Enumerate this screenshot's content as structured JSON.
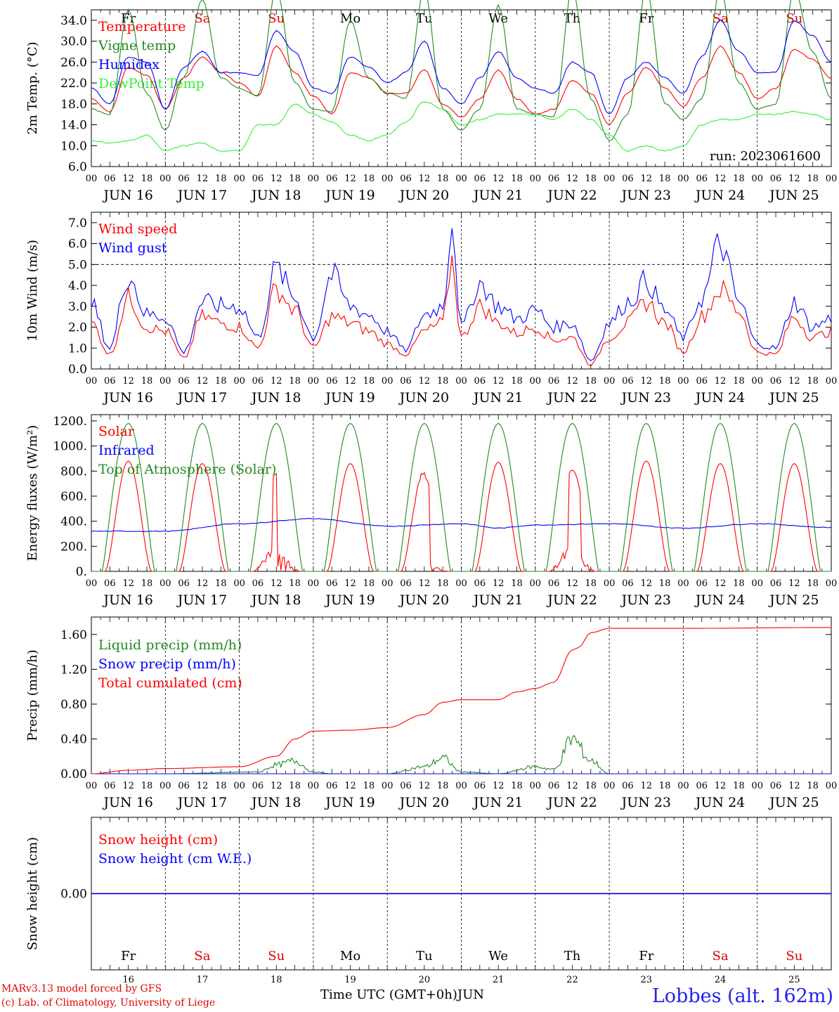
{
  "footer": {
    "credit_1": "MARv3.13 model forced by GFS",
    "credit_2": "(c) Lab. of Climatology, University of Liege",
    "xlabel": "Time UTC (GMT+0h)",
    "month": "JUN",
    "station": "Lobbes (alt. 162m)"
  },
  "days": {
    "weekdays": [
      "Fr",
      "Sa",
      "Su",
      "Mo",
      "Tu",
      "We",
      "Th",
      "Fr",
      "Sa",
      "Su"
    ],
    "weekend_color": "#e00000",
    "weekday_color": "#000000",
    "weekend_flags": [
      false,
      true,
      true,
      false,
      false,
      false,
      false,
      false,
      true,
      true
    ],
    "date_labels": [
      "JUN 16",
      "JUN 17",
      "JUN 18",
      "JUN 19",
      "JUN 20",
      "JUN 21",
      "JUN 22",
      "JUN 23",
      "JUN 24",
      "JUN 25"
    ],
    "day_numbers": [
      "16",
      "17",
      "18",
      "19",
      "20",
      "21",
      "22",
      "23",
      "24",
      "25"
    ],
    "hour_labels": [
      "00",
      "06",
      "12",
      "18"
    ],
    "final_hour": "00"
  },
  "chart_data": [
    {
      "type": "line",
      "ylabel": "2m Temp. (°C)",
      "ylim": [
        6,
        36
      ],
      "yticks": [
        "6.0",
        "10.0",
        "14.0",
        "18.0",
        "22.0",
        "26.0",
        "30.0",
        "34.0"
      ],
      "annotation": "run: 2023061600",
      "x_unit": "hours since JUN 16 00 UTC",
      "series": [
        {
          "name": "Temperature",
          "color": "#ff0000",
          "x": [
            0,
            6,
            12,
            18,
            24,
            30,
            36,
            42,
            48,
            54,
            60,
            66,
            72,
            78,
            84,
            90,
            96,
            102,
            108,
            114,
            120,
            126,
            132,
            138,
            144,
            150,
            156,
            162,
            168,
            174,
            180,
            186,
            192,
            198,
            204,
            210,
            216,
            222,
            228,
            234,
            240
          ],
          "values": [
            19,
            16.5,
            25,
            23.5,
            17,
            23,
            27,
            24,
            22,
            19.5,
            29,
            24,
            19.5,
            16,
            24,
            23,
            20,
            20,
            24.5,
            18,
            15.5,
            19,
            24.5,
            19,
            16,
            17,
            22.5,
            20,
            14,
            20,
            25,
            21,
            17.5,
            23,
            29,
            24,
            19,
            21,
            28.5,
            26.5,
            23
          ]
        },
        {
          "name": "Vigne temp",
          "color": "#228b22",
          "x": [
            0,
            6,
            12,
            18,
            24,
            30,
            36,
            42,
            48,
            54,
            60,
            66,
            72,
            78,
            84,
            90,
            96,
            102,
            108,
            114,
            120,
            126,
            132,
            138,
            144,
            150,
            156,
            162,
            168,
            174,
            180,
            186,
            192,
            198,
            204,
            210,
            216,
            222,
            228,
            234,
            240
          ],
          "values": [
            17,
            16,
            36,
            20,
            13,
            23,
            38,
            23,
            21,
            19.5,
            40,
            22,
            17,
            16.5,
            34,
            23,
            20,
            19,
            40,
            17,
            13,
            17,
            37,
            17,
            16,
            15.5,
            40,
            19,
            11,
            16,
            40,
            18,
            15,
            19,
            40,
            22,
            17,
            18,
            40,
            28,
            19
          ]
        },
        {
          "name": "Humidex",
          "color": "#0000ff",
          "x": [
            0,
            6,
            12,
            18,
            24,
            30,
            36,
            42,
            48,
            54,
            60,
            66,
            72,
            78,
            84,
            90,
            96,
            102,
            108,
            114,
            120,
            126,
            132,
            138,
            144,
            150,
            156,
            162,
            168,
            174,
            180,
            186,
            192,
            198,
            204,
            210,
            216,
            222,
            228,
            234,
            240
          ],
          "values": [
            21,
            18,
            27,
            26,
            17,
            25,
            28,
            24,
            24,
            23.5,
            32,
            28,
            21,
            20,
            27,
            25,
            22,
            24,
            30,
            21,
            18,
            23,
            28,
            23,
            21,
            20,
            26,
            24,
            16,
            23,
            26,
            23,
            20,
            27,
            34,
            28,
            24,
            24,
            34,
            31,
            26
          ]
        },
        {
          "name": "DewPoint Temp",
          "color": "#33ee33",
          "x": [
            0,
            6,
            12,
            18,
            24,
            30,
            36,
            42,
            48,
            54,
            60,
            66,
            72,
            78,
            84,
            90,
            96,
            102,
            108,
            114,
            120,
            126,
            132,
            138,
            144,
            150,
            156,
            162,
            168,
            174,
            180,
            186,
            192,
            198,
            204,
            210,
            216,
            222,
            228,
            234,
            240
          ],
          "values": [
            11,
            10.5,
            11,
            12,
            9,
            10,
            10.5,
            9,
            9,
            14,
            14,
            18,
            16,
            14.5,
            12,
            11,
            12,
            14.5,
            18.5,
            17,
            14,
            15,
            16,
            16,
            16,
            15,
            17,
            15,
            12,
            9,
            10,
            9,
            10,
            14,
            15,
            15,
            16,
            16,
            16.5,
            16,
            15
          ]
        }
      ]
    },
    {
      "type": "line",
      "ylabel": "10m Wind (m/s)",
      "ylim": [
        0,
        7.5
      ],
      "yticks": [
        "0.0",
        "1.0",
        "2.0",
        "3.0",
        "4.0",
        "5.0",
        "6.0",
        "7.0"
      ],
      "reference_line": 5.0,
      "series": [
        {
          "name": "Wind speed",
          "color": "#ff0000",
          "x": [
            0,
            6,
            12,
            18,
            24,
            30,
            36,
            42,
            48,
            54,
            60,
            66,
            72,
            78,
            84,
            90,
            96,
            102,
            108,
            114,
            117,
            120,
            126,
            132,
            138,
            144,
            150,
            156,
            162,
            168,
            174,
            180,
            186,
            192,
            198,
            204,
            210,
            216,
            222,
            228,
            234,
            240
          ],
          "values": [
            2.2,
            0.7,
            3.4,
            2.0,
            1.8,
            0.5,
            2.5,
            2.2,
            2.0,
            1.0,
            3.8,
            2.8,
            1.0,
            2.5,
            2.2,
            1.8,
            1.2,
            0.7,
            1.8,
            2.2,
            5.2,
            1.5,
            3.0,
            2.2,
            1.7,
            2.0,
            1.4,
            1.5,
            0.2,
            1.5,
            2.2,
            3.2,
            2.2,
            0.8,
            2.5,
            3.8,
            2.8,
            0.8,
            0.7,
            2.5,
            1.5,
            1.8
          ]
        },
        {
          "name": "Wind gust",
          "color": "#0000ff",
          "x": [
            0,
            6,
            12,
            18,
            24,
            30,
            36,
            42,
            48,
            54,
            60,
            66,
            72,
            78,
            84,
            90,
            96,
            102,
            108,
            114,
            117,
            120,
            126,
            132,
            138,
            144,
            150,
            156,
            162,
            168,
            174,
            180,
            186,
            192,
            198,
            204,
            210,
            216,
            222,
            228,
            234,
            240
          ],
          "values": [
            3.1,
            1.0,
            4.5,
            2.6,
            2.5,
            0.8,
            3.2,
            3.0,
            3.0,
            1.5,
            4.8,
            3.4,
            1.5,
            4.5,
            3.0,
            2.6,
            1.8,
            0.9,
            2.6,
            3.0,
            7.1,
            2.0,
            4.1,
            3.0,
            2.4,
            2.8,
            2.0,
            2.2,
            0.4,
            2.2,
            3.2,
            4.2,
            2.8,
            1.5,
            3.4,
            6.0,
            3.2,
            1.2,
            1.0,
            3.2,
            2.0,
            2.4
          ]
        }
      ]
    },
    {
      "type": "line",
      "ylabel": "Energy fluxes (W/m²)",
      "ylim": [
        0,
        1250
      ],
      "yticks": [
        "0.",
        "200.",
        "400.",
        "600.",
        "800.",
        "1000.",
        "1200."
      ],
      "series": [
        {
          "name": "Solar",
          "color": "#ff0000",
          "day_peaks": [
            880,
            860,
            780,
            860,
            780,
            870,
            850,
            880,
            860,
            860
          ],
          "note": "daily bell curves, broken on JUN 18, 20, 22"
        },
        {
          "name": "Infrared",
          "color": "#0000ff",
          "x": [
            0,
            24,
            48,
            72,
            96,
            120,
            132,
            144,
            168,
            192,
            216,
            240
          ],
          "values": [
            320,
            320,
            380,
            420,
            360,
            380,
            345,
            370,
            380,
            345,
            380,
            350
          ]
        },
        {
          "name": "Top of Atmosphere (Solar)",
          "color": "#228b22",
          "day_peaks": [
            1180,
            1180,
            1180,
            1180,
            1180,
            1180,
            1180,
            1180,
            1180,
            1180
          ]
        }
      ]
    },
    {
      "type": "line",
      "ylabel": "Precip (mm/h)",
      "ylim": [
        0,
        1.8
      ],
      "yticks": [
        "0.00",
        "0.40",
        "0.80",
        "1.20",
        "1.60"
      ],
      "series": [
        {
          "name": "Liquid precip (mm/h)",
          "color": "#228b22",
          "x": [
            0,
            24,
            54,
            60,
            66,
            72,
            78,
            96,
            108,
            114,
            120,
            132,
            144,
            150,
            156,
            162,
            168,
            240
          ],
          "values": [
            0,
            0,
            0.02,
            0.1,
            0.15,
            0.02,
            0,
            0,
            0.08,
            0.18,
            0.02,
            0,
            0.08,
            0.05,
            0.4,
            0.15,
            0,
            0
          ]
        },
        {
          "name": "Snow precip (mm/h)",
          "color": "#0000ff",
          "x": [
            0,
            240
          ],
          "values": [
            0,
            0
          ]
        },
        {
          "name": "Total cumulated (cm)",
          "color": "#ff0000",
          "x": [
            0,
            12,
            24,
            48,
            60,
            66,
            72,
            84,
            96,
            108,
            114,
            120,
            132,
            138,
            144,
            150,
            156,
            158,
            162,
            168,
            192,
            240
          ],
          "values": [
            0,
            0.04,
            0.06,
            0.08,
            0.2,
            0.4,
            0.49,
            0.5,
            0.53,
            0.68,
            0.82,
            0.85,
            0.85,
            0.94,
            0.98,
            1.05,
            1.42,
            1.45,
            1.62,
            1.67,
            1.67,
            1.68
          ]
        }
      ]
    },
    {
      "type": "line",
      "ylabel": "Snow height (cm)",
      "ylim": [
        -1,
        1
      ],
      "yticks": [
        "0.00"
      ],
      "series": [
        {
          "name": "Snow height (cm)",
          "color": "#ff0000",
          "x": [
            0,
            240
          ],
          "values": [
            0,
            0
          ]
        },
        {
          "name": "Snow height (cm W.E.)",
          "color": "#0000ff",
          "x": [
            0,
            240
          ],
          "values": [
            0,
            0
          ]
        }
      ]
    }
  ]
}
